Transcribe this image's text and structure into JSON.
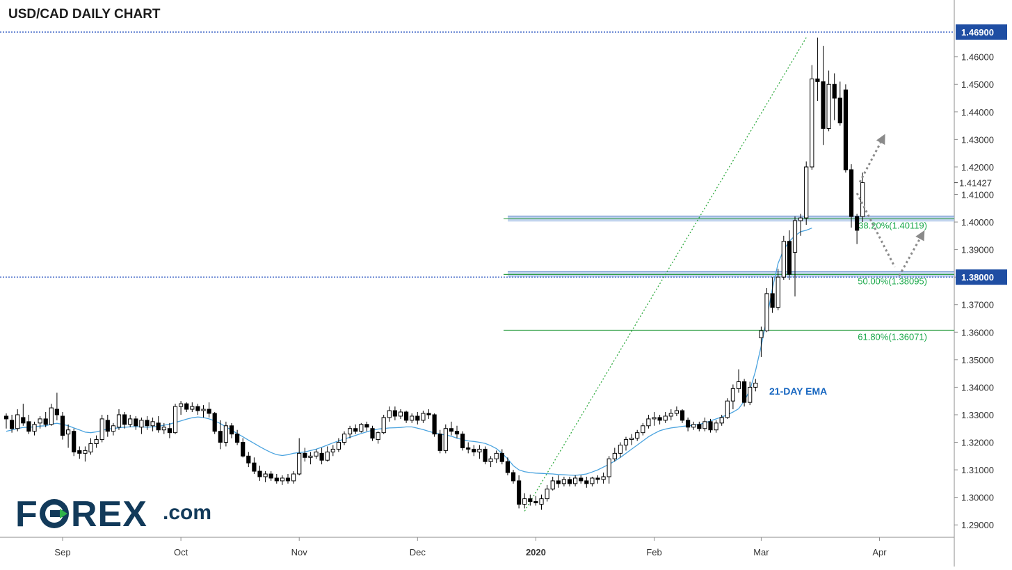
{
  "chart_data": {
    "type": "candlestick",
    "title": "USD/CAD DAILY CHART",
    "x_tick_labels": [
      "Sep",
      "Oct",
      "Nov",
      "Dec",
      "2020",
      "Feb",
      "Mar",
      "Apr"
    ],
    "y_tick_labels": [
      "1.29000",
      "1.30000",
      "1.31000",
      "1.32000",
      "1.33000",
      "1.34000",
      "1.35000",
      "1.36000",
      "1.37000",
      "1.38000",
      "1.39000",
      "1.40000",
      "1.41000",
      "1.42000",
      "1.43000",
      "1.44000",
      "1.45000",
      "1.46000",
      "1.46900"
    ],
    "y_ticks": [
      1.29,
      1.3,
      1.31,
      1.32,
      1.33,
      1.34,
      1.35,
      1.36,
      1.37,
      1.38,
      1.39,
      1.4,
      1.41,
      1.42,
      1.43,
      1.44,
      1.45,
      1.46
    ],
    "ylim": [
      1.2855,
      1.4718
    ],
    "x_tick_index": [
      10,
      31,
      52,
      73,
      94,
      115,
      134,
      155
    ],
    "last_price": 1.41427,
    "last_price_label": "1.41427",
    "horizontal_levels": [
      {
        "value": 1.469,
        "label": "1.46900"
      },
      {
        "value": 1.38,
        "label": "1.38000"
      }
    ],
    "fibonacci": [
      {
        "value": 1.40119,
        "label": "38.20%(1.40119)"
      },
      {
        "value": 1.38095,
        "label": "50.00%(1.38095)"
      },
      {
        "value": 1.36071,
        "label": "61.80%(1.36071)"
      }
    ],
    "ema_label": "21-DAY EMA",
    "trend_line": {
      "from": {
        "index": 92,
        "value": 1.295
      },
      "to": {
        "index": 142,
        "value": 1.467
      }
    },
    "arrows": [
      {
        "from": {
          "index": 151.5,
          "value": 1.4145
        },
        "to": {
          "index": 156,
          "value": 1.432
        }
      },
      {
        "from": {
          "index": 151,
          "value": 1.4105
        },
        "to": {
          "index": 158.5,
          "value": 1.3805
        }
      },
      {
        "from": {
          "index": 158.5,
          "value": 1.3805
        },
        "to": {
          "index": 163,
          "value": 1.397
        }
      }
    ],
    "candles": [
      [
        1.3295,
        1.3305,
        1.325,
        1.3285
      ],
      [
        1.328,
        1.33,
        1.3235,
        1.325
      ],
      [
        1.325,
        1.332,
        1.324,
        1.33
      ],
      [
        1.329,
        1.334,
        1.326,
        1.327
      ],
      [
        1.3275,
        1.33,
        1.323,
        1.324
      ],
      [
        1.324,
        1.3275,
        1.3225,
        1.3265
      ],
      [
        1.327,
        1.3295,
        1.325,
        1.3285
      ],
      [
        1.3285,
        1.331,
        1.3255,
        1.3265
      ],
      [
        1.3265,
        1.334,
        1.326,
        1.3325
      ],
      [
        1.332,
        1.338,
        1.328,
        1.33
      ],
      [
        1.3295,
        1.331,
        1.321,
        1.3225
      ],
      [
        1.323,
        1.3265,
        1.318,
        1.3245
      ],
      [
        1.324,
        1.325,
        1.315,
        1.3165
      ],
      [
        1.317,
        1.3185,
        1.314,
        1.316
      ],
      [
        1.316,
        1.3185,
        1.313,
        1.317
      ],
      [
        1.3165,
        1.3215,
        1.3155,
        1.3195
      ],
      [
        1.3195,
        1.3225,
        1.318,
        1.321
      ],
      [
        1.321,
        1.33,
        1.32,
        1.3285
      ],
      [
        1.328,
        1.33,
        1.322,
        1.324
      ],
      [
        1.324,
        1.327,
        1.3225,
        1.326
      ],
      [
        1.3255,
        1.332,
        1.3245,
        1.33
      ],
      [
        1.33,
        1.331,
        1.325,
        1.3265
      ],
      [
        1.3265,
        1.33,
        1.3255,
        1.3285
      ],
      [
        1.3285,
        1.3295,
        1.3245,
        1.326
      ],
      [
        1.3255,
        1.329,
        1.323,
        1.328
      ],
      [
        1.328,
        1.3295,
        1.3245,
        1.326
      ],
      [
        1.326,
        1.329,
        1.324,
        1.3275
      ],
      [
        1.327,
        1.3295,
        1.3235,
        1.3245
      ],
      [
        1.3245,
        1.327,
        1.323,
        1.3255
      ],
      [
        1.325,
        1.327,
        1.3215,
        1.3235
      ],
      [
        1.3235,
        1.334,
        1.323,
        1.333
      ],
      [
        1.333,
        1.335,
        1.33,
        1.334
      ],
      [
        1.334,
        1.3345,
        1.331,
        1.332
      ],
      [
        1.332,
        1.3345,
        1.331,
        1.333
      ],
      [
        1.333,
        1.334,
        1.33,
        1.3315
      ],
      [
        1.3315,
        1.3335,
        1.329,
        1.332
      ],
      [
        1.332,
        1.3345,
        1.329,
        1.3305
      ],
      [
        1.3305,
        1.331,
        1.323,
        1.324
      ],
      [
        1.324,
        1.328,
        1.3175,
        1.32
      ],
      [
        1.32,
        1.3275,
        1.3185,
        1.326
      ],
      [
        1.326,
        1.327,
        1.3215,
        1.323
      ],
      [
        1.323,
        1.3245,
        1.319,
        1.32
      ],
      [
        1.32,
        1.3215,
        1.3145,
        1.315
      ],
      [
        1.315,
        1.3165,
        1.311,
        1.3125
      ],
      [
        1.3125,
        1.3145,
        1.3085,
        1.3095
      ],
      [
        1.3095,
        1.3115,
        1.306,
        1.3075
      ],
      [
        1.3075,
        1.3095,
        1.3055,
        1.3085
      ],
      [
        1.3085,
        1.3095,
        1.306,
        1.307
      ],
      [
        1.307,
        1.3085,
        1.305,
        1.306
      ],
      [
        1.306,
        1.308,
        1.3045,
        1.307
      ],
      [
        1.307,
        1.3085,
        1.305,
        1.306
      ],
      [
        1.306,
        1.3095,
        1.305,
        1.3085
      ],
      [
        1.3085,
        1.3215,
        1.308,
        1.316
      ],
      [
        1.316,
        1.318,
        1.313,
        1.3145
      ],
      [
        1.3145,
        1.3165,
        1.312,
        1.315
      ],
      [
        1.315,
        1.3175,
        1.314,
        1.3165
      ],
      [
        1.316,
        1.318,
        1.312,
        1.3135
      ],
      [
        1.3135,
        1.3185,
        1.313,
        1.3165
      ],
      [
        1.3165,
        1.319,
        1.315,
        1.3175
      ],
      [
        1.3175,
        1.3215,
        1.3165,
        1.32
      ],
      [
        1.32,
        1.324,
        1.319,
        1.323
      ],
      [
        1.323,
        1.326,
        1.3215,
        1.325
      ],
      [
        1.325,
        1.3265,
        1.323,
        1.324
      ],
      [
        1.324,
        1.327,
        1.3235,
        1.3265
      ],
      [
        1.3265,
        1.3275,
        1.324,
        1.3255
      ],
      [
        1.325,
        1.326,
        1.3205,
        1.3215
      ],
      [
        1.321,
        1.324,
        1.3195,
        1.3235
      ],
      [
        1.3235,
        1.33,
        1.323,
        1.329
      ],
      [
        1.329,
        1.333,
        1.3275,
        1.3315
      ],
      [
        1.3315,
        1.333,
        1.328,
        1.3295
      ],
      [
        1.3295,
        1.332,
        1.3285,
        1.331
      ],
      [
        1.331,
        1.3315,
        1.327,
        1.328
      ],
      [
        1.328,
        1.3305,
        1.327,
        1.3295
      ],
      [
        1.3295,
        1.331,
        1.3265,
        1.328
      ],
      [
        1.328,
        1.3315,
        1.327,
        1.3305
      ],
      [
        1.3305,
        1.332,
        1.3285,
        1.33
      ],
      [
        1.33,
        1.3305,
        1.322,
        1.323
      ],
      [
        1.323,
        1.3245,
        1.316,
        1.317
      ],
      [
        1.317,
        1.3265,
        1.316,
        1.325
      ],
      [
        1.325,
        1.3275,
        1.3225,
        1.324
      ],
      [
        1.324,
        1.326,
        1.3215,
        1.323
      ],
      [
        1.323,
        1.324,
        1.317,
        1.318
      ],
      [
        1.318,
        1.32,
        1.316,
        1.3175
      ],
      [
        1.3175,
        1.319,
        1.315,
        1.3165
      ],
      [
        1.3165,
        1.319,
        1.314,
        1.3175
      ],
      [
        1.3175,
        1.3185,
        1.312,
        1.313
      ],
      [
        1.313,
        1.315,
        1.311,
        1.314
      ],
      [
        1.314,
        1.317,
        1.3125,
        1.316
      ],
      [
        1.316,
        1.3175,
        1.312,
        1.313
      ],
      [
        1.313,
        1.3145,
        1.308,
        1.309
      ],
      [
        1.309,
        1.31,
        1.305,
        1.306
      ],
      [
        1.306,
        1.308,
        1.296,
        1.2975
      ],
      [
        1.2975,
        1.3015,
        1.296,
        1.2995
      ],
      [
        1.2995,
        1.301,
        1.297,
        1.2985
      ],
      [
        1.2985,
        1.3005,
        1.297,
        1.298
      ],
      [
        1.2975,
        1.301,
        1.2955,
        1.2995
      ],
      [
        1.2995,
        1.3045,
        1.2985,
        1.303
      ],
      [
        1.303,
        1.3075,
        1.3025,
        1.306
      ],
      [
        1.306,
        1.308,
        1.3035,
        1.305
      ],
      [
        1.305,
        1.3075,
        1.304,
        1.3065
      ],
      [
        1.3065,
        1.3075,
        1.304,
        1.305
      ],
      [
        1.305,
        1.308,
        1.304,
        1.307
      ],
      [
        1.307,
        1.308,
        1.305,
        1.306
      ],
      [
        1.306,
        1.3075,
        1.3035,
        1.305
      ],
      [
        1.305,
        1.3075,
        1.304,
        1.307
      ],
      [
        1.307,
        1.308,
        1.305,
        1.3065
      ],
      [
        1.3065,
        1.309,
        1.305,
        1.3075
      ],
      [
        1.3075,
        1.315,
        1.305,
        1.314
      ],
      [
        1.314,
        1.318,
        1.313,
        1.316
      ],
      [
        1.316,
        1.32,
        1.3145,
        1.319
      ],
      [
        1.319,
        1.322,
        1.317,
        1.321
      ],
      [
        1.321,
        1.323,
        1.319,
        1.3215
      ],
      [
        1.3215,
        1.3245,
        1.3205,
        1.3235
      ],
      [
        1.3235,
        1.327,
        1.3225,
        1.326
      ],
      [
        1.326,
        1.33,
        1.325,
        1.3285
      ],
      [
        1.3285,
        1.331,
        1.326,
        1.329
      ],
      [
        1.329,
        1.33,
        1.3265,
        1.328
      ],
      [
        1.328,
        1.331,
        1.327,
        1.3295
      ],
      [
        1.3295,
        1.332,
        1.328,
        1.3305
      ],
      [
        1.3305,
        1.333,
        1.3295,
        1.3315
      ],
      [
        1.3315,
        1.332,
        1.327,
        1.328
      ],
      [
        1.328,
        1.329,
        1.324,
        1.3255
      ],
      [
        1.3255,
        1.3275,
        1.3245,
        1.3265
      ],
      [
        1.3265,
        1.3275,
        1.324,
        1.325
      ],
      [
        1.325,
        1.329,
        1.324,
        1.3275
      ],
      [
        1.3275,
        1.3285,
        1.3235,
        1.3245
      ],
      [
        1.3245,
        1.328,
        1.3235,
        1.327
      ],
      [
        1.327,
        1.33,
        1.326,
        1.329
      ],
      [
        1.329,
        1.336,
        1.3285,
        1.335
      ],
      [
        1.335,
        1.341,
        1.332,
        1.3395
      ],
      [
        1.3395,
        1.3465,
        1.338,
        1.342
      ],
      [
        1.342,
        1.343,
        1.333,
        1.3345
      ],
      [
        1.3345,
        1.342,
        1.3335,
        1.34
      ],
      [
        1.34,
        1.343,
        1.3385,
        1.3415
      ],
      [
        1.358,
        1.362,
        1.351,
        1.3605
      ],
      [
        1.3605,
        1.376,
        1.36,
        1.374
      ],
      [
        1.374,
        1.38,
        1.367,
        1.369
      ],
      [
        1.369,
        1.383,
        1.368,
        1.38
      ],
      [
        1.38,
        1.395,
        1.379,
        1.393
      ],
      [
        1.393,
        1.397,
        1.379,
        1.381
      ],
      [
        1.389,
        1.402,
        1.373,
        1.4005
      ],
      [
        1.4005,
        1.403,
        1.395,
        1.4015
      ],
      [
        1.4015,
        1.422,
        1.399,
        1.42
      ],
      [
        1.42,
        1.457,
        1.419,
        1.452
      ],
      [
        1.452,
        1.467,
        1.444,
        1.451
      ],
      [
        1.451,
        1.464,
        1.428,
        1.434
      ],
      [
        1.434,
        1.455,
        1.433,
        1.45
      ],
      [
        1.45,
        1.454,
        1.437,
        1.445
      ],
      [
        1.445,
        1.451,
        1.435,
        1.436
      ],
      [
        1.448,
        1.45,
        1.418,
        1.419
      ],
      [
        1.419,
        1.421,
        1.398,
        1.402
      ],
      [
        1.402,
        1.403,
        1.392,
        1.397
      ],
      [
        1.402,
        1.418,
        1.4,
        1.4143
      ]
    ],
    "ema": [
      1.324,
      1.3245,
      1.325,
      1.3254,
      1.3255,
      1.3256,
      1.3259,
      1.326,
      1.3266,
      1.3269,
      1.3265,
      1.326,
      1.3252,
      1.3245,
      1.3237,
      1.3235,
      1.3238,
      1.3243,
      1.3248,
      1.325,
      1.3253,
      1.3255,
      1.3256,
      1.3257,
      1.3256,
      1.3255,
      1.3256,
      1.3258,
      1.3262,
      1.3266,
      1.3272,
      1.3278,
      1.3284,
      1.3289,
      1.3292,
      1.329,
      1.3285,
      1.3278,
      1.3268,
      1.3256,
      1.3244,
      1.3232,
      1.322,
      1.3208,
      1.3196,
      1.3184,
      1.3173,
      1.3163,
      1.3155,
      1.3152,
      1.3155,
      1.316,
      1.3163,
      1.3165,
      1.317,
      1.3175,
      1.3182,
      1.319,
      1.3198,
      1.3205,
      1.3212,
      1.3218,
      1.3225,
      1.3232,
      1.3238,
      1.3244,
      1.3248,
      1.325,
      1.3252,
      1.3253,
      1.3254,
      1.3256,
      1.3256,
      1.3251,
      1.3246,
      1.324,
      1.3234,
      1.323,
      1.3226,
      1.3222,
      1.3215,
      1.321,
      1.3205,
      1.3203,
      1.32,
      1.3196,
      1.3188,
      1.3177,
      1.316,
      1.314,
      1.3115,
      1.31,
      1.3093,
      1.309,
      1.3088,
      1.3087,
      1.3086,
      1.3085,
      1.3083,
      1.3082,
      1.3081,
      1.308,
      1.3082,
      1.3085,
      1.3092,
      1.31,
      1.311,
      1.312,
      1.3132,
      1.3145,
      1.316,
      1.3175,
      1.319,
      1.3205,
      1.322,
      1.3232,
      1.3242,
      1.3248,
      1.3252,
      1.3255,
      1.3258,
      1.326,
      1.3262,
      1.3265,
      1.327,
      1.3278,
      1.3285,
      1.3292,
      1.33,
      1.331,
      1.3322,
      1.335,
      1.339,
      1.346,
      1.355,
      1.365,
      1.376,
      1.385,
      1.39,
      1.393,
      1.395,
      1.3965,
      1.397,
      1.3978
    ]
  }
}
